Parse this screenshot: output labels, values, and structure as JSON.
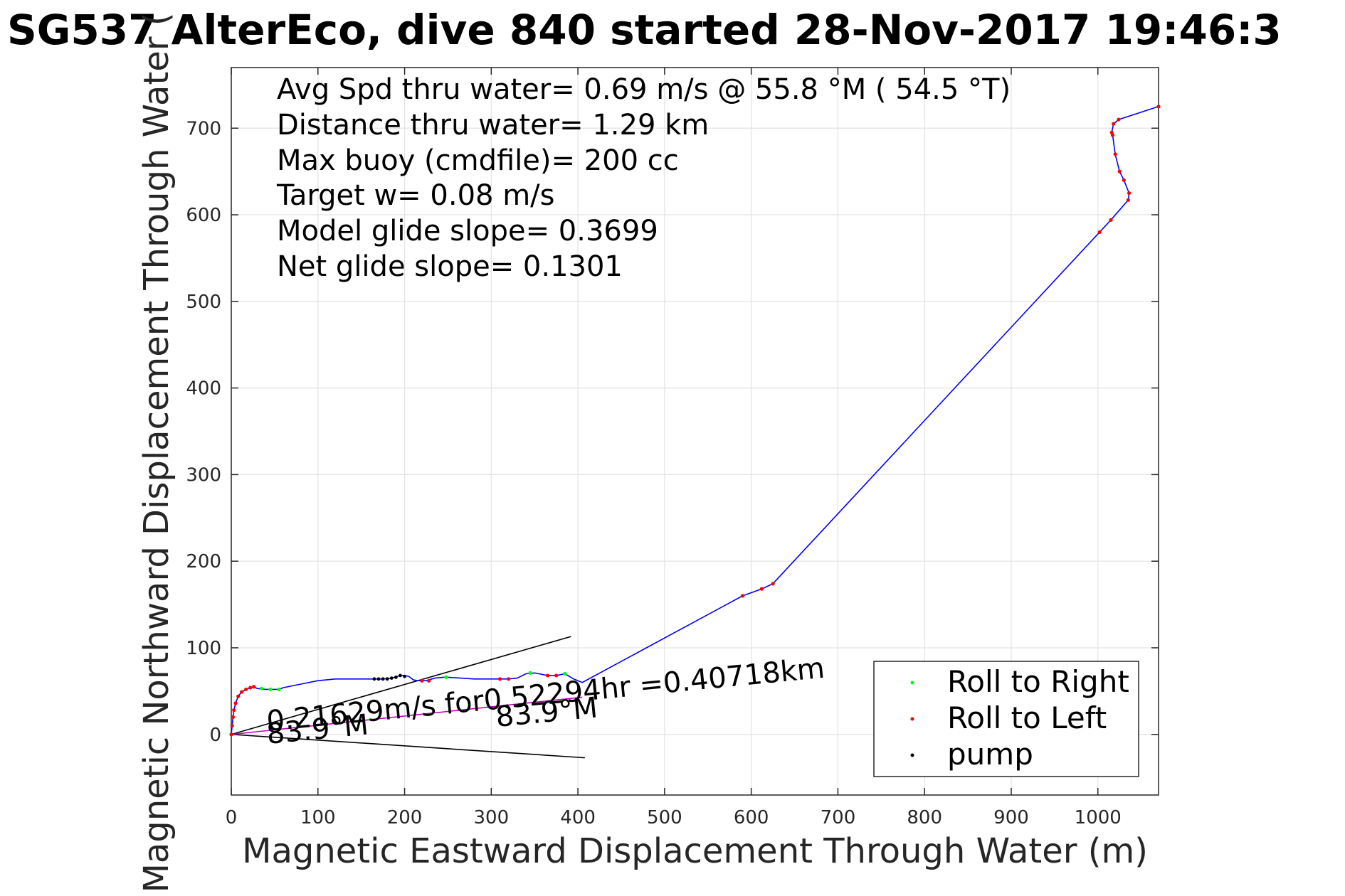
{
  "chart_data": {
    "type": "line",
    "title": "SG537 AlterEco, dive 840 started 28-Nov-2017 19:46:3",
    "xlabel": "Magnetic Eastward Displacement Through Water (m)",
    "ylabel": "Magnetic Northward Displacement Through Water (",
    "xlim": [
      0,
      1070
    ],
    "ylim": [
      -70,
      770
    ],
    "xticks": [
      0,
      100,
      200,
      300,
      400,
      500,
      600,
      700,
      800,
      900,
      1000
    ],
    "yticks": [
      0,
      100,
      200,
      300,
      400,
      500,
      600,
      700
    ],
    "grid": true,
    "legend_position": "bottom-right",
    "annotations": [
      "Avg Spd thru water=  0.69 m/s @  55.8 °M ( 54.5 °T)",
      "Distance thru water=  1.29 km",
      "Max buoy (cmdfile)= 200 cc",
      "Target w= 0.08 m/s",
      "Model glide slope= 0.3699",
      "Net glide slope= 0.1301"
    ],
    "current_label": "0.21629m/s for0.52294hr =0.40718km",
    "heading_labels": [
      "83.9°M",
      "83.9°M"
    ],
    "series": [
      {
        "name": "track",
        "color": "#0000ff",
        "x": [
          0,
          1,
          2,
          3,
          5,
          8,
          12,
          17,
          22,
          26,
          30,
          40,
          50,
          55,
          60,
          80,
          100,
          120,
          150,
          165,
          175,
          185,
          195,
          200,
          205,
          210,
          215,
          220,
          225,
          235,
          245,
          250,
          265,
          280,
          295,
          310,
          320,
          330,
          340,
          350,
          365,
          375,
          385,
          395,
          405,
          590,
          612,
          625,
          1002,
          1015,
          1035,
          1036,
          1030,
          1025,
          1020,
          1017,
          1016,
          1018,
          1024,
          1070
        ],
        "y": [
          0,
          10,
          20,
          28,
          36,
          44,
          49,
          52,
          54,
          55,
          53,
          52,
          52,
          52,
          54,
          58,
          62,
          64,
          64,
          64,
          64,
          65,
          68,
          68,
          67,
          63,
          62,
          62,
          62,
          65,
          66,
          66,
          65,
          64,
          64,
          64,
          64,
          65,
          70,
          71,
          68,
          68,
          70,
          64,
          60,
          160,
          168,
          174,
          580,
          594,
          617,
          625,
          640,
          650,
          670,
          692,
          695,
          705,
          710,
          725
        ]
      },
      {
        "name": "Roll to Right",
        "color": "#00ff00",
        "x": [
          35,
          45,
          55,
          248,
          345,
          385
        ],
        "y": [
          53,
          52,
          52,
          66,
          71,
          70
        ]
      },
      {
        "name": "Roll to Left",
        "color": "#ff0000",
        "x": [
          0,
          1,
          2,
          3,
          5,
          8,
          12,
          17,
          22,
          26,
          220,
          228,
          310,
          320,
          365,
          375,
          590,
          612,
          625,
          1002,
          1015,
          1035,
          1036,
          1030,
          1025,
          1020,
          1017,
          1016,
          1018,
          1024,
          1070
        ],
        "y": [
          0,
          10,
          20,
          28,
          36,
          44,
          49,
          52,
          54,
          55,
          62,
          62,
          64,
          64,
          68,
          68,
          160,
          168,
          174,
          580,
          594,
          617,
          625,
          640,
          650,
          670,
          692,
          695,
          705,
          710,
          725
        ]
      },
      {
        "name": "pump",
        "color": "#000000",
        "x": [
          165,
          170,
          175,
          180,
          185,
          190,
          195,
          200
        ],
        "y": [
          64,
          64,
          64,
          64,
          65,
          66,
          68,
          67
        ]
      },
      {
        "name": "current",
        "color": "#c000c0",
        "x": [
          0,
          405
        ],
        "y": [
          0,
          43
        ]
      }
    ],
    "reference_lines": [
      {
        "x": [
          0,
          392
        ],
        "y": [
          0,
          113
        ]
      },
      {
        "x": [
          0,
          408
        ],
        "y": [
          0,
          -27
        ]
      }
    ],
    "legend": [
      {
        "label": "Roll to Right",
        "color": "#00ff00"
      },
      {
        "label": "Roll to Left",
        "color": "#ff0000"
      },
      {
        "label": "pump",
        "color": "#000000"
      }
    ]
  }
}
